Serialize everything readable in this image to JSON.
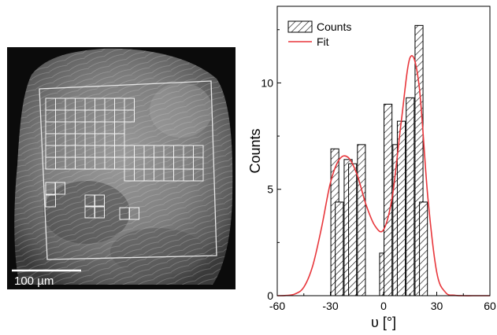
{
  "micrograph": {
    "scale_bar_label": "100 µm"
  },
  "chart_data": {
    "type": "bar",
    "xlabel": "υ [°]",
    "ylabel": "Counts",
    "xlim": [
      -60,
      60
    ],
    "ylim": [
      0,
      13.6
    ],
    "xticks": [
      -60,
      -30,
      0,
      30,
      60
    ],
    "yticks": [
      0,
      5,
      10
    ],
    "bin_width": 5,
    "grid": false,
    "legend": "top-left",
    "series": [
      {
        "name": "Counts",
        "color": "#000000",
        "x": [
          -27.5,
          -25,
          -20,
          -17.5,
          -12.5,
          0,
          2.5,
          7.5,
          10,
          15,
          20,
          22.5
        ],
        "values": [
          6.9,
          4.4,
          6.4,
          6.2,
          7.1,
          2.0,
          9.0,
          7.1,
          8.2,
          9.3,
          12.7,
          4.4
        ]
      },
      {
        "name": "Fit",
        "color": "#e8363b",
        "x": [
          -60,
          -55,
          -50,
          -45,
          -40,
          -35,
          -30,
          -25,
          -20,
          -15,
          -10,
          -5,
          0,
          5,
          10,
          15,
          20,
          25,
          30,
          35,
          40,
          45,
          50,
          55,
          60
        ],
        "values": [
          0.0,
          0.01,
          0.08,
          0.4,
          1.4,
          3.2,
          5.3,
          6.4,
          6.5,
          5.7,
          4.3,
          3.3,
          3.1,
          4.7,
          8.2,
          11.2,
          9.9,
          4.6,
          1.1,
          0.15,
          0.02,
          0.0,
          0.0,
          0.0,
          0.0
        ]
      }
    ]
  }
}
